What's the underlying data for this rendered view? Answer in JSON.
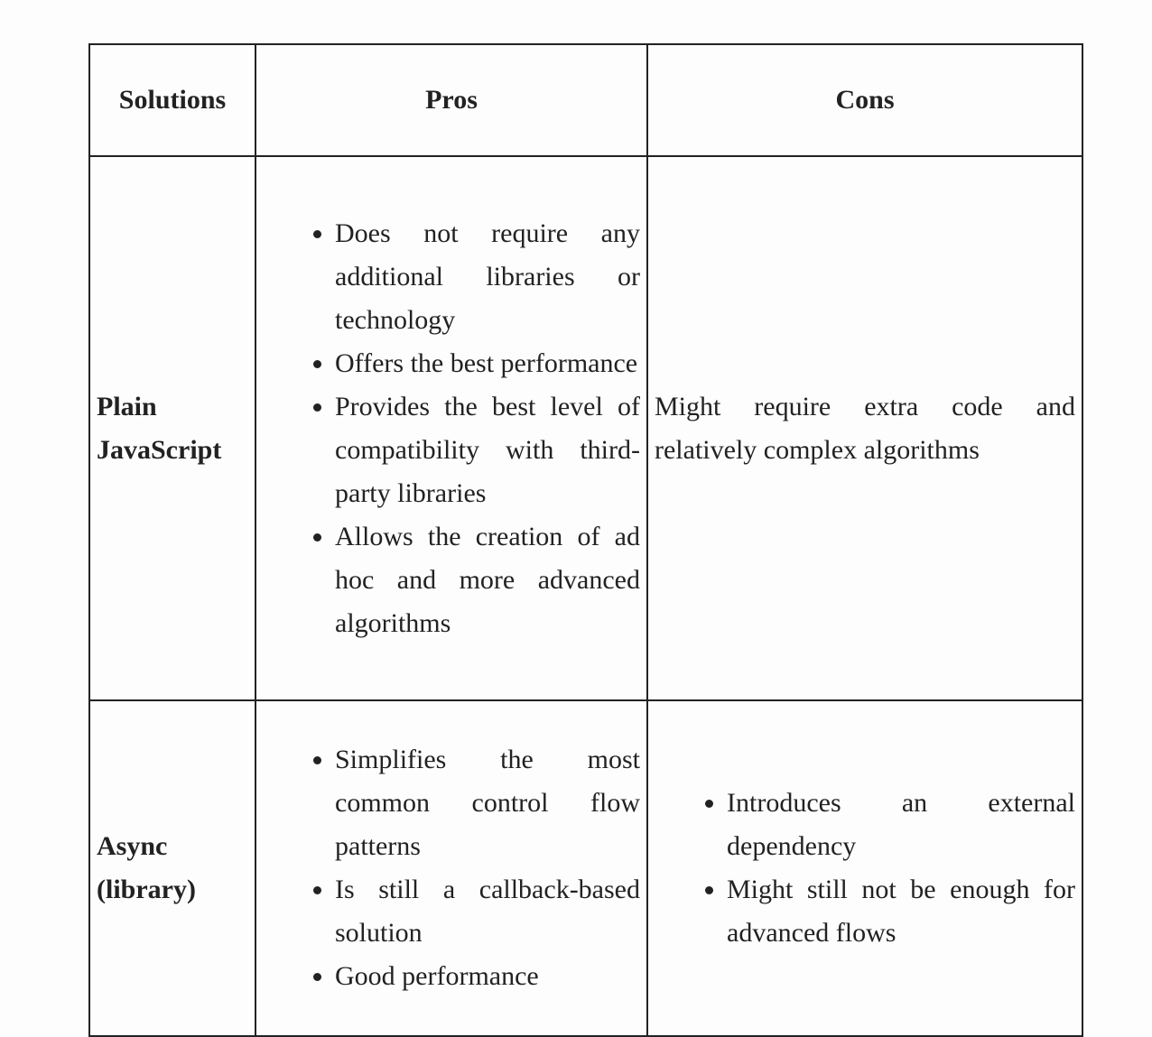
{
  "table": {
    "headers": [
      "Solutions",
      "Pros",
      "Cons"
    ],
    "rows": [
      {
        "solution": "Plain JavaScript",
        "pros": [
          "Does not require any additional libraries or technology",
          "Offers the best performance",
          "Provides the best level of compatibility with third-party libraries",
          "Allows the creation of ad hoc and more advanced algorithms"
        ],
        "cons": "Might require extra code and relatively complex algorithms"
      },
      {
        "solution": "Async (library)",
        "pros": [
          "Simplifies the most common control flow patterns",
          "Is still a callback-based solution",
          "Good performance"
        ],
        "cons": [
          "Introduces an external dependency",
          "Might still not be enough for advanced flows"
        ]
      }
    ]
  }
}
